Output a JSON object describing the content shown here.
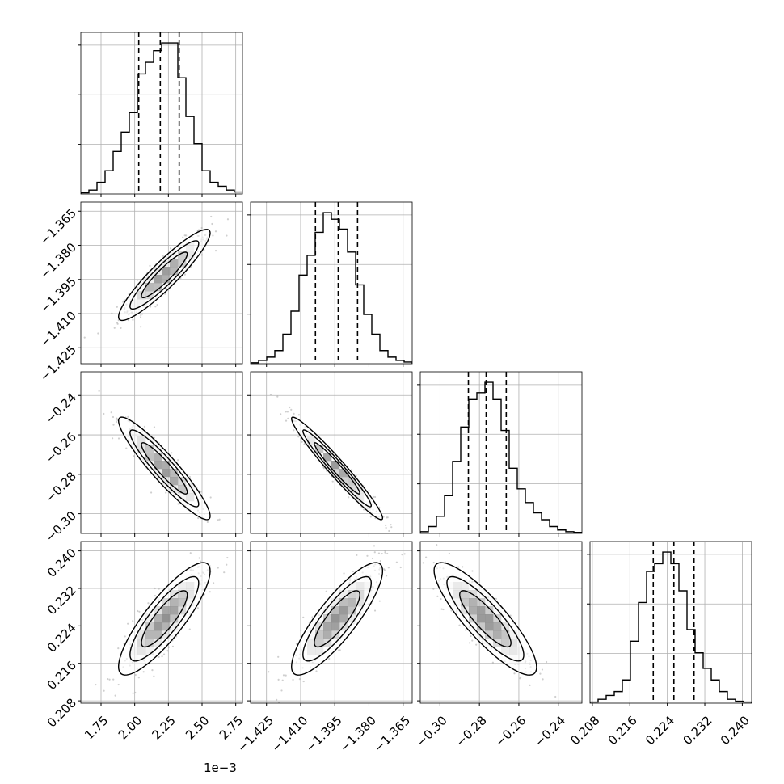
{
  "chart_data": {
    "type": "scatter",
    "variables": [
      {
        "range": [
          1.6,
          2.8
        ],
        "ticks": [
          1.75,
          2.0,
          2.25,
          2.5,
          2.75
        ],
        "tick_labels": [
          "1.75",
          "2.00",
          "2.25",
          "2.50",
          "2.75"
        ],
        "offset_text": "1e−3",
        "quantiles": [
          2.03,
          2.19,
          2.33
        ],
        "histogram": [
          0.3,
          1,
          3,
          6,
          11,
          16,
          21,
          31,
          34,
          37,
          39,
          39,
          30,
          20,
          13,
          6,
          3,
          2,
          1,
          0.5
        ]
      },
      {
        "range": [
          -1.432,
          -1.361
        ],
        "ticks": [
          -1.425,
          -1.41,
          -1.395,
          -1.38,
          -1.365
        ],
        "tick_labels": [
          "−1.425",
          "−1.410",
          "−1.395",
          "−1.380",
          "−1.365"
        ],
        "quantiles": [
          -1.4035,
          -1.3935,
          -1.385
        ],
        "histogram": [
          0.3,
          1,
          2,
          4,
          9,
          16,
          27,
          33,
          40,
          46,
          44,
          41,
          34,
          24,
          15,
          9,
          4,
          2,
          1,
          0.5
        ]
      },
      {
        "range": [
          -0.31,
          -0.228
        ],
        "ticks": [
          -0.3,
          -0.28,
          -0.26,
          -0.24
        ],
        "tick_labels": [
          "−0.30",
          "−0.28",
          "−0.26",
          "−0.24"
        ],
        "quantiles": [
          -0.2856,
          -0.2766,
          -0.2664
        ],
        "histogram": [
          0.5,
          2,
          5,
          11,
          21,
          31,
          39,
          41,
          44,
          39,
          30,
          19,
          13,
          9,
          6,
          4,
          2,
          1,
          0.5,
          0.3
        ]
      },
      {
        "range": [
          0.2075,
          0.242
        ],
        "ticks": [
          0.208,
          0.216,
          0.224,
          0.232,
          0.24
        ],
        "tick_labels": [
          "0.208",
          "0.216",
          "0.224",
          "0.232",
          "0.240"
        ],
        "quantiles": [
          0.221,
          0.2254,
          0.2297
        ],
        "histogram": [
          0.3,
          1,
          2,
          3,
          6,
          16,
          26,
          34,
          36,
          39,
          36,
          29,
          19,
          13,
          9,
          6,
          3,
          1,
          0.5,
          0.3
        ]
      }
    ],
    "pairs": [
      {
        "x": 0,
        "y": 1,
        "mean": [
          2.22,
          -1.393
        ],
        "sd": [
          0.17,
          0.01
        ],
        "rho": 0.92
      },
      {
        "x": 0,
        "y": 2,
        "mean": [
          2.22,
          -0.277
        ],
        "sd": [
          0.17,
          0.013
        ],
        "rho": -0.93
      },
      {
        "x": 1,
        "y": 2,
        "mean": [
          -1.394,
          -0.277
        ],
        "sd": [
          0.01,
          0.013
        ],
        "rho": -0.97
      },
      {
        "x": 0,
        "y": 3,
        "mean": [
          2.22,
          0.2255
        ],
        "sd": [
          0.17,
          0.006
        ],
        "rho": 0.85
      },
      {
        "x": 1,
        "y": 3,
        "mean": [
          -1.394,
          0.2255
        ],
        "sd": [
          0.01,
          0.006
        ],
        "rho": 0.85
      },
      {
        "x": 2,
        "y": 3,
        "mean": [
          -0.277,
          0.2255
        ],
        "sd": [
          0.013,
          0.006
        ],
        "rho": -0.86
      }
    ],
    "contour_levels_sigma": [
      1.0,
      1.5,
      2.0
    ],
    "grid": true,
    "colors": {
      "axes": "#000000",
      "grid": "#b0b0b0",
      "points": "#a8a8a8",
      "density": "#000000",
      "line": "#000000"
    }
  }
}
